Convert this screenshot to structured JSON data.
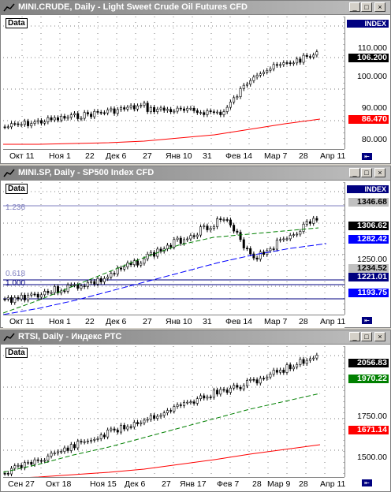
{
  "panels": [
    {
      "title": "MINI.CRUDE, Daily - Light Sweet Crude Oil Futures CFD",
      "data_label": "Data",
      "index_label": "INDEX",
      "y_ticks": [
        "110.000",
        "100.000",
        "90.000",
        "80.000"
      ],
      "badges": [
        {
          "text": "106.200",
          "bg": "#000000",
          "color": "#ffffff"
        },
        {
          "text": "86.470",
          "bg": "#ff0000",
          "color": "#ffffff"
        }
      ],
      "x_labels": [
        "Окт 11",
        "Ноя 1",
        "22",
        "Дек 6",
        "27",
        "Янв 10",
        "31",
        "Фев 14",
        "Мар 7",
        "28",
        "Апр 11"
      ]
    },
    {
      "title": "MINI.SP, Daily - SP500 Index CFD",
      "data_label": "Data",
      "index_label": "INDEX",
      "y_ticks": [
        "1250.00"
      ],
      "fib_labels": [
        "1.236",
        "0.618",
        "1.000"
      ],
      "badges": [
        {
          "text": "1346.68",
          "bg": "#c0c0c0",
          "color": "#000000"
        },
        {
          "text": "1306.62",
          "bg": "#000000",
          "color": "#ffffff"
        },
        {
          "text": "1282.42",
          "bg": "#0000ff",
          "color": "#ffffff"
        },
        {
          "text": "1234.52",
          "bg": "#c0c0c0",
          "color": "#000000"
        },
        {
          "text": "1221.01",
          "bg": "#000080",
          "color": "#ffffff"
        },
        {
          "text": "1193.75",
          "bg": "#0000ff",
          "color": "#ffffff"
        }
      ],
      "x_labels": [
        "Окт 11",
        "Ноя 1",
        "22",
        "Дек 6",
        "27",
        "Янв 10",
        "31",
        "Фев 14",
        "Мар 7",
        "28",
        "Апр 11"
      ]
    },
    {
      "title": "RTSI, Daily - Индекс РТС",
      "data_label": "Data",
      "y_ticks": [
        "1750.00",
        "1500.00"
      ],
      "badges": [
        {
          "text": "2056.83",
          "bg": "#000000",
          "color": "#ffffff"
        },
        {
          "text": "1970.22",
          "bg": "#008000",
          "color": "#ffffff"
        },
        {
          "text": "1671.14",
          "bg": "#ff0000",
          "color": "#ffffff"
        }
      ],
      "x_labels": [
        "Сен 27",
        "Окт 18",
        "Ноя 15",
        "Дек 6",
        "27",
        "Янв 17",
        "Фев 7",
        "28",
        "Мар 9",
        "28",
        "Апр 11"
      ]
    }
  ],
  "colors": {
    "title_bar_text": "#ffffff",
    "candle_up": "#000000",
    "candle_down": "#000000",
    "ma_red": "#ff0000",
    "ma_green": "#008000",
    "trend_blue": "#0000ff",
    "fib_navy": "#000080"
  }
}
